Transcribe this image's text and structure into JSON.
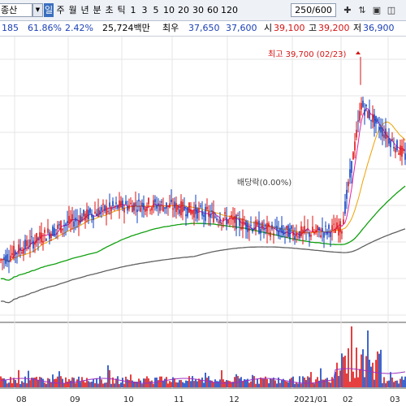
{
  "toolbar": {
    "stock_name": "종산",
    "periods": [
      {
        "label": "일",
        "active": true
      },
      {
        "label": "주",
        "active": false
      },
      {
        "label": "월",
        "active": false
      },
      {
        "label": "년",
        "active": false
      },
      {
        "label": "분",
        "active": false
      },
      {
        "label": "초",
        "active": false
      },
      {
        "label": "틱",
        "active": false
      },
      {
        "label": "1",
        "active": false
      },
      {
        "label": "3",
        "active": false
      },
      {
        "label": "5",
        "active": false
      },
      {
        "label": "10",
        "active": false
      },
      {
        "label": "20",
        "active": false
      },
      {
        "label": "30",
        "active": false
      },
      {
        "label": "60",
        "active": false
      },
      {
        "label": "120",
        "active": false
      }
    ],
    "count": "250/600",
    "icons": [
      "indicator-settings-icon",
      "sort-icon",
      "save-icon",
      "more-icon"
    ]
  },
  "info": {
    "change": "185",
    "pct1": "61.86%",
    "pct2": "2.42%",
    "amount": "25,724백만",
    "label_low": "최우",
    "v1": "37,650",
    "v2": "37,600",
    "label_high": "시",
    "v3": "39,100",
    "label_high2": "고",
    "v4": "39,200",
    "label_low2": "저",
    "v5": "36,900"
  },
  "annotations": {
    "high_label": "최고 39,700 (02/23)",
    "dividend_label": "배당락(0.00%)"
  },
  "chart_data": {
    "type": "candlestick",
    "x_labels": [
      "08",
      "09",
      "10",
      "11",
      "12",
      "2021/01",
      "02",
      "03"
    ],
    "price_range": [
      24000,
      41000
    ],
    "series": [
      {
        "name": "5일",
        "color": "#e020a0"
      },
      {
        "name": "20일",
        "color": "#f0a000"
      },
      {
        "name": "60일",
        "color": "#10a010"
      },
      {
        "name": "120일",
        "color": "#606060"
      }
    ],
    "colors": {
      "up": "#e01010",
      "down": "#1040c0",
      "grid": "#e6e6e6",
      "volume_line": "#9a30c0"
    }
  }
}
